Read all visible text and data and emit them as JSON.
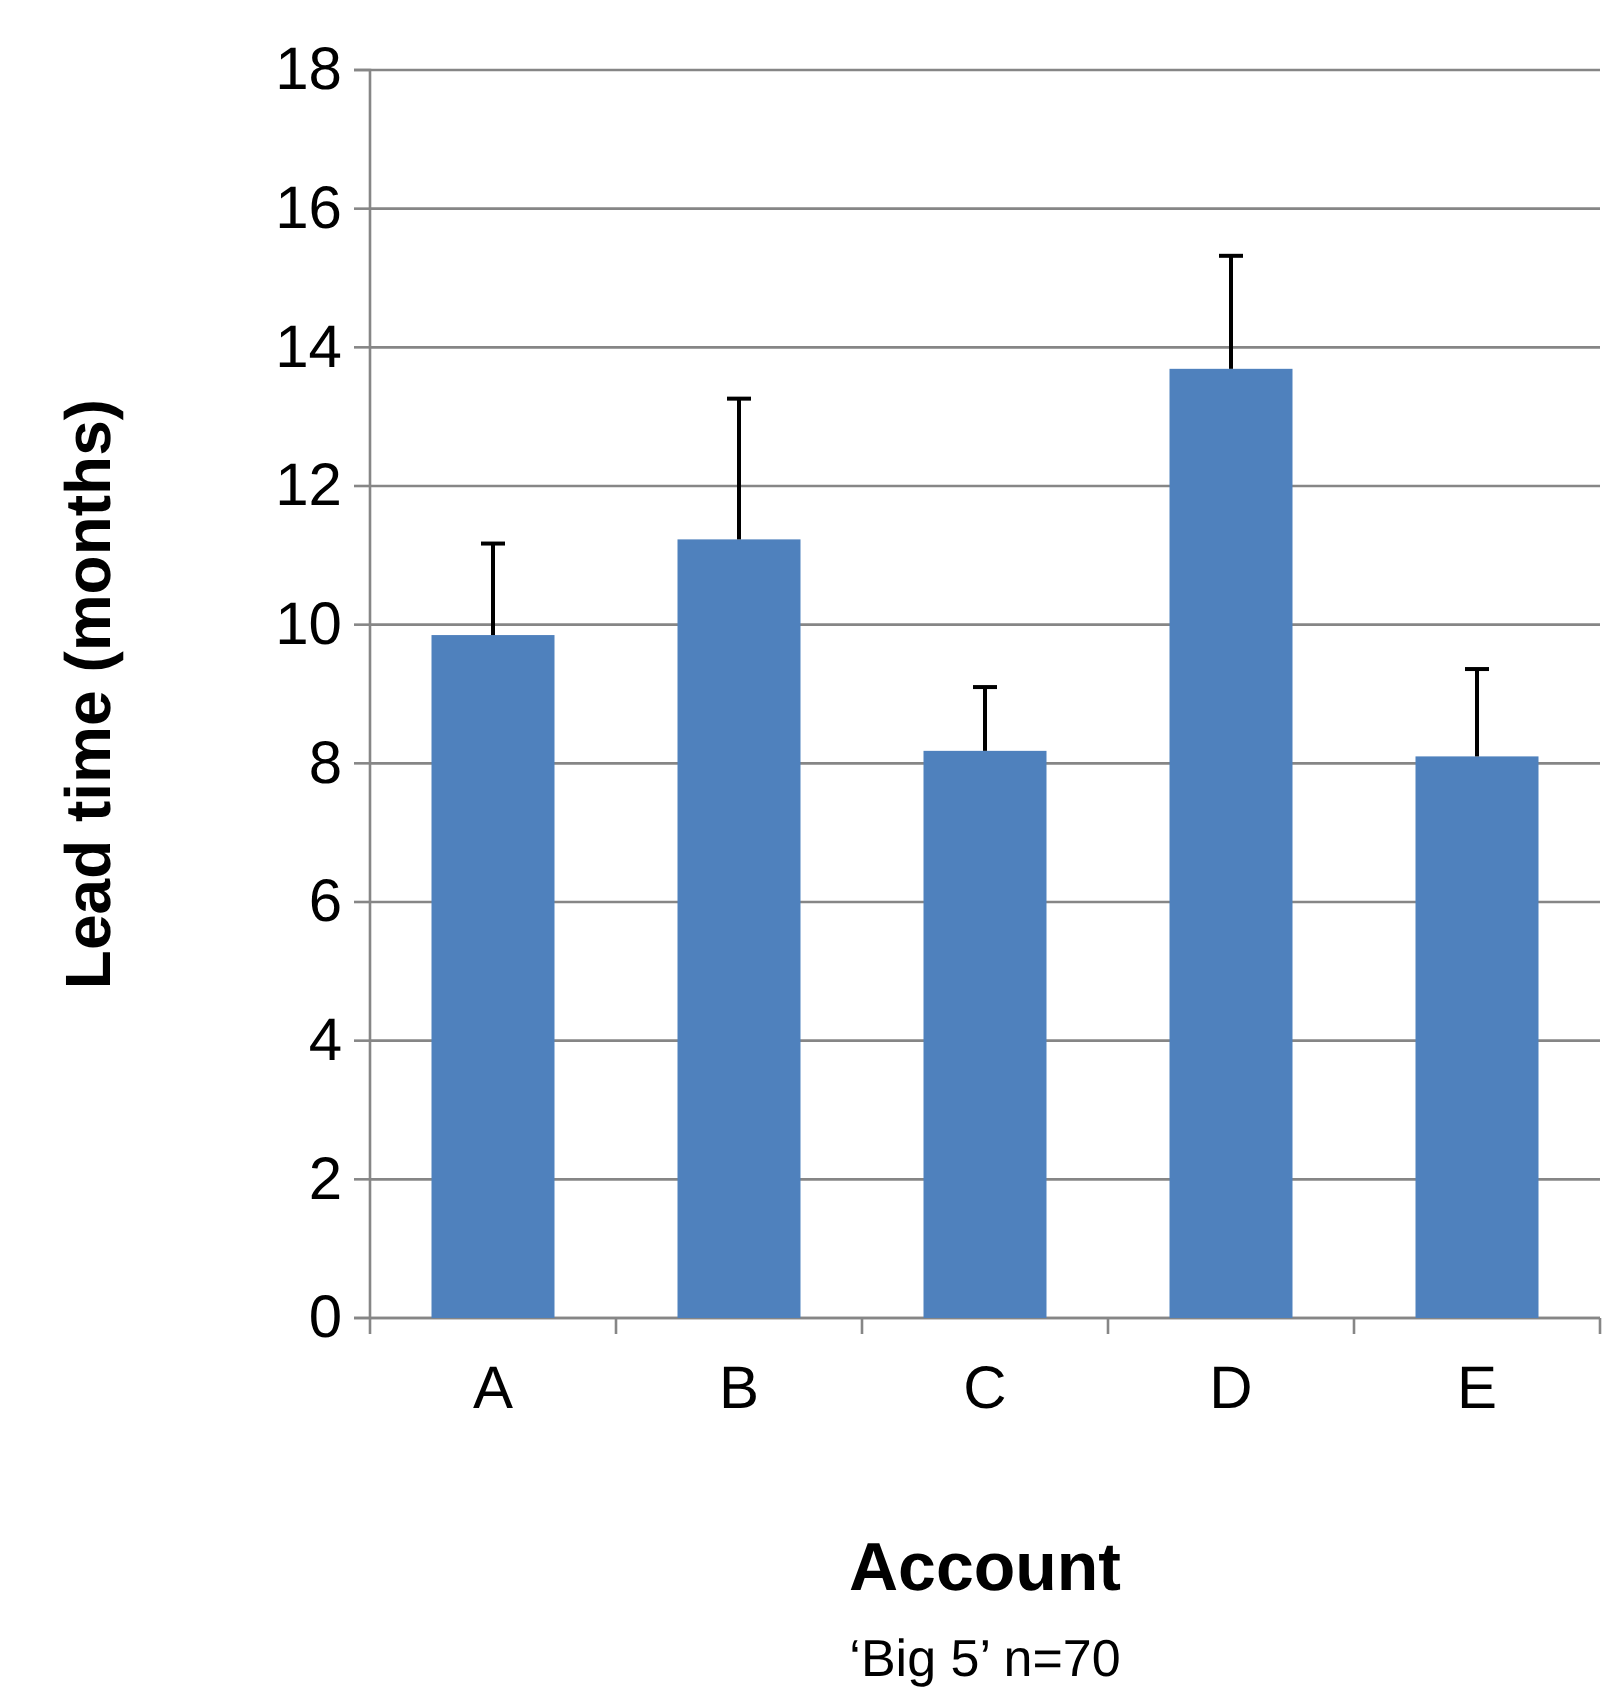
{
  "chart_data": {
    "type": "bar",
    "xlabel": "Account",
    "ylabel": "Lead time (months)",
    "annotations": [
      "‘Big 5’ n=70"
    ],
    "categories": [
      "A",
      "B",
      "C",
      "D",
      "E"
    ],
    "values": [
      9.85,
      11.23,
      8.18,
      13.69,
      8.1
    ],
    "errors": [
      [
        9.85,
        11.17
      ],
      [
        11.23,
        13.26
      ],
      [
        8.18,
        9.1
      ],
      [
        13.69,
        15.32
      ],
      [
        8.1,
        9.36
      ]
    ],
    "color": "#4f81bd",
    "ylim": [
      0,
      18
    ],
    "yticks": [
      0,
      2,
      4,
      6,
      8,
      10,
      12,
      14,
      16,
      18
    ],
    "grid": "y"
  }
}
